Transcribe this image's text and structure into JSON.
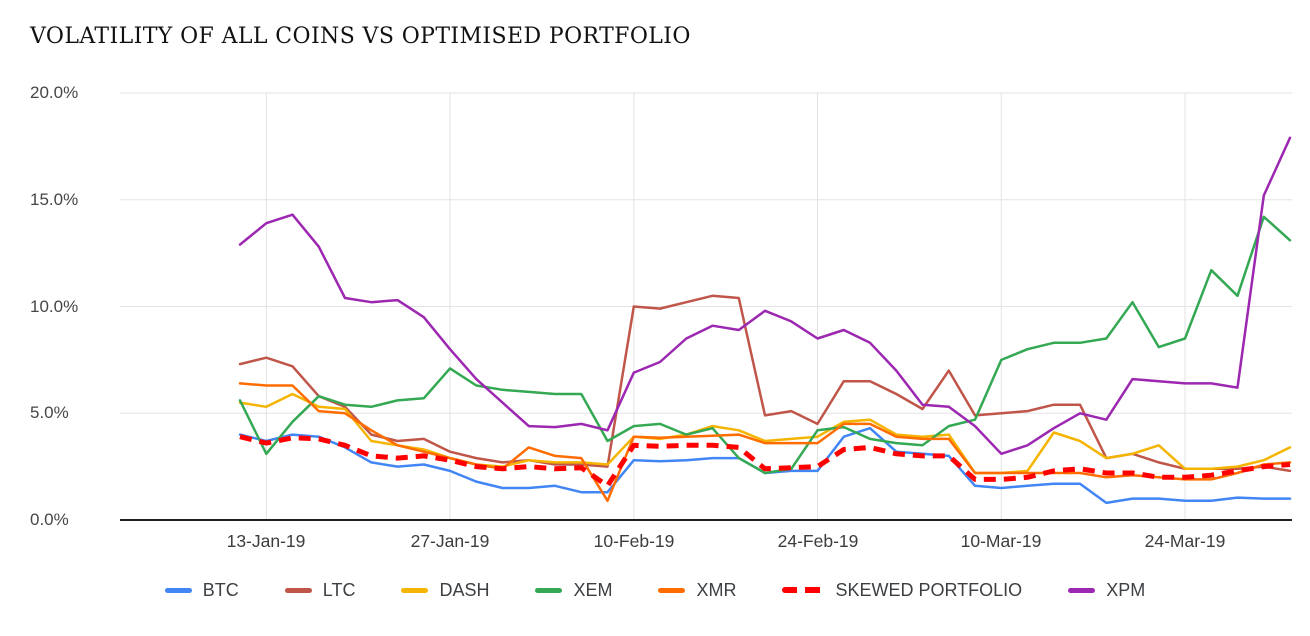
{
  "chart_data": {
    "type": "line",
    "title": "VOLATILITY OF ALL COINS VS OPTIMISED PORTFOLIO",
    "xlabel": "",
    "ylabel": "",
    "y_unit": "%",
    "ylim": [
      0,
      20
    ],
    "grid": true,
    "legend_position": "bottom",
    "n_points": 41,
    "y_ticks": [
      0,
      5,
      10,
      15,
      20
    ],
    "y_tick_labels": [
      "0.0%",
      "5.0%",
      "10.0%",
      "15.0%",
      "20.0%"
    ],
    "x_tick_labels": [
      "13-Jan-19",
      "27-Jan-19",
      "10-Feb-19",
      "24-Feb-19",
      "10-Mar-19",
      "24-Mar-19"
    ],
    "x_tick_point_indices": [
      1,
      8,
      15,
      22,
      29,
      36
    ],
    "series": [
      {
        "name": "BTC",
        "color": "#4285f4",
        "dashed": false,
        "values": [
          4.0,
          3.7,
          4.0,
          3.9,
          3.4,
          2.7,
          2.5,
          2.6,
          2.3,
          1.8,
          1.5,
          1.5,
          1.6,
          1.3,
          1.3,
          2.8,
          2.75,
          2.8,
          2.9,
          2.9,
          2.2,
          2.3,
          2.3,
          3.9,
          4.3,
          3.2,
          3.1,
          3.0,
          1.6,
          1.5,
          1.6,
          1.7,
          1.7,
          0.8,
          1.0,
          1.0,
          0.9,
          0.9,
          1.05,
          1.0,
          1.0
        ]
      },
      {
        "name": "LTC",
        "color": "#c0564a",
        "dashed": false,
        "values": [
          7.3,
          7.6,
          7.2,
          5.8,
          5.3,
          4.0,
          3.7,
          3.8,
          3.2,
          2.9,
          2.7,
          2.8,
          2.6,
          2.6,
          2.5,
          10.0,
          9.9,
          10.2,
          10.5,
          10.4,
          4.9,
          5.1,
          4.5,
          6.5,
          6.5,
          5.9,
          5.2,
          7.0,
          4.9,
          5.0,
          5.1,
          5.4,
          5.4,
          2.9,
          3.1,
          2.7,
          2.4,
          2.4,
          2.4,
          2.5,
          2.3
        ]
      },
      {
        "name": "DASH",
        "color": "#f4b400",
        "dashed": false,
        "values": [
          5.5,
          5.3,
          5.9,
          5.3,
          5.2,
          3.7,
          3.5,
          3.3,
          2.9,
          2.6,
          2.5,
          2.8,
          2.7,
          2.7,
          2.6,
          3.9,
          3.8,
          4.0,
          4.4,
          4.2,
          3.7,
          3.8,
          3.9,
          4.6,
          4.7,
          4.0,
          3.9,
          4.0,
          2.2,
          2.2,
          2.3,
          4.1,
          3.7,
          2.9,
          3.1,
          3.5,
          2.4,
          2.4,
          2.5,
          2.8,
          3.4
        ]
      },
      {
        "name": "XEM",
        "color": "#34a853",
        "dashed": false,
        "values": [
          5.6,
          3.1,
          4.6,
          5.8,
          5.4,
          5.3,
          5.6,
          5.7,
          7.1,
          6.3,
          6.1,
          6.0,
          5.9,
          5.9,
          3.7,
          4.4,
          4.5,
          4.0,
          4.3,
          2.9,
          2.2,
          2.4,
          4.2,
          4.35,
          3.8,
          3.6,
          3.5,
          4.4,
          4.7,
          7.5,
          8.0,
          8.3,
          8.3,
          8.5,
          10.2,
          8.1,
          8.5,
          11.7,
          10.5,
          14.2,
          13.1
        ]
      },
      {
        "name": "XMR",
        "color": "#ff6d01",
        "dashed": false,
        "values": [
          6.4,
          6.3,
          6.3,
          5.1,
          5.0,
          4.2,
          3.5,
          3.2,
          2.9,
          2.6,
          2.4,
          3.4,
          3.0,
          2.9,
          0.9,
          3.9,
          3.85,
          3.9,
          3.95,
          4.0,
          3.6,
          3.6,
          3.6,
          4.5,
          4.5,
          3.9,
          3.8,
          3.8,
          2.2,
          2.2,
          2.2,
          2.2,
          2.2,
          2.0,
          2.1,
          2.0,
          1.9,
          1.9,
          2.2,
          2.6,
          2.7
        ]
      },
      {
        "name": "SKEWED PORTFOLIO",
        "color": "#ff0000",
        "dashed": true,
        "values": [
          3.9,
          3.6,
          3.85,
          3.8,
          3.5,
          3.0,
          2.9,
          3.0,
          2.8,
          2.5,
          2.4,
          2.5,
          2.4,
          2.45,
          1.6,
          3.5,
          3.45,
          3.5,
          3.5,
          3.4,
          2.4,
          2.45,
          2.5,
          3.3,
          3.4,
          3.1,
          3.0,
          3.0,
          1.9,
          1.9,
          2.0,
          2.3,
          2.4,
          2.2,
          2.2,
          2.0,
          2.0,
          2.1,
          2.3,
          2.5,
          2.6
        ]
      },
      {
        "name": "XPM",
        "color": "#9c27b0",
        "dashed": false,
        "values": [
          12.9,
          13.9,
          14.3,
          12.8,
          10.4,
          10.2,
          10.3,
          9.5,
          8.0,
          6.6,
          5.5,
          4.4,
          4.35,
          4.5,
          4.2,
          6.9,
          7.4,
          8.5,
          9.1,
          8.9,
          9.8,
          9.3,
          8.5,
          8.9,
          8.3,
          7.0,
          5.4,
          5.3,
          4.4,
          3.1,
          3.5,
          4.3,
          5.0,
          4.7,
          6.6,
          6.5,
          6.4,
          6.4,
          6.2,
          15.2,
          17.9
        ]
      }
    ]
  }
}
